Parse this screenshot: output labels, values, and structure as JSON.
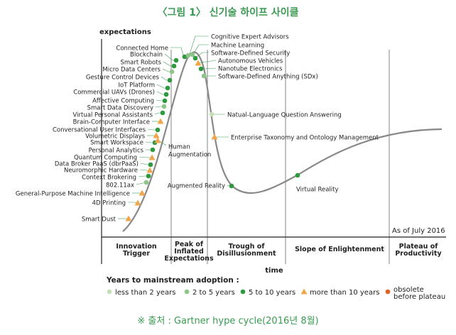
{
  "figure_title": "〈그림 1〉 신기술 하이프 사이클",
  "source_note": "※ 출처 : Gartner hype cycle(2016년 8월)",
  "chart_data": {
    "type": "line",
    "title": "",
    "ylabel": "expectations",
    "xlabel": "time",
    "as_of": "As of July 2016",
    "phases": [
      {
        "name": "innovation-trigger",
        "lines": [
          "Innovation",
          "Trigger"
        ]
      },
      {
        "name": "peak",
        "lines": [
          "Peak of",
          "Inflated",
          "Expectations"
        ]
      },
      {
        "name": "trough",
        "lines": [
          "Trough of",
          "Disillusionment"
        ]
      },
      {
        "name": "slope",
        "lines": [
          "Slope of Enlightenment"
        ]
      },
      {
        "name": "plateau",
        "lines": [
          "Plateau of",
          "Productivity"
        ]
      }
    ],
    "legend": {
      "title": "Years to mainstream adoption :",
      "items": [
        {
          "key": "lt2",
          "label": "less than 2 years",
          "color": "#c5dfb4",
          "shape": "circle"
        },
        {
          "key": "2to5",
          "label": "2 to 5 years",
          "color": "#8fc58a",
          "shape": "circle"
        },
        {
          "key": "5to10",
          "label": "5 to 10 years",
          "color": "#2e9a3f",
          "shape": "circle"
        },
        {
          "key": "gt10",
          "label": "more than 10 years",
          "color": "#f2a64c",
          "shape": "triangle"
        },
        {
          "key": "obsolete",
          "label": "obsolete before plateau",
          "color": "#e4601e",
          "shape": "circle"
        }
      ]
    },
    "technologies": [
      {
        "label": "Smart Dust",
        "category": "gt10"
      },
      {
        "label": "4D Printing",
        "category": "gt10"
      },
      {
        "label": "General-Purpose Machine Intelligence",
        "category": "gt10"
      },
      {
        "label": "802.11ax",
        "category": "2to5"
      },
      {
        "label": "Context Brokering",
        "category": "5to10"
      },
      {
        "label": "Neuromorphic Hardware",
        "category": "gt10"
      },
      {
        "label": "Data Broker PaaS (dbrPaaS)",
        "category": "5to10"
      },
      {
        "label": "Quantum Computing",
        "category": "gt10"
      },
      {
        "label": "Personal Analytics",
        "category": "5to10"
      },
      {
        "label": "Smart Workspace",
        "category": "5to10"
      },
      {
        "label": "Volumetric Displays",
        "category": "gt10"
      },
      {
        "label": "Conversational User Interfaces",
        "category": "5to10"
      },
      {
        "label": "Brain-Computer Interface",
        "category": "gt10"
      },
      {
        "label": "Virtual Personal Assistants",
        "category": "5to10"
      },
      {
        "label": "Smart Data Discovery",
        "category": "2to5"
      },
      {
        "label": "Affective Computing",
        "category": "5to10"
      },
      {
        "label": "Commercial UAVs (Drones)",
        "category": "5to10"
      },
      {
        "label": "IoT Platform",
        "category": "5to10"
      },
      {
        "label": "Gesture Control Devices",
        "category": "5to10"
      },
      {
        "label": "Micro Data Centers",
        "category": "2to5"
      },
      {
        "label": "Smart Robots",
        "category": "5to10"
      },
      {
        "label": "Blockchain",
        "category": "5to10"
      },
      {
        "label": "Connected Home",
        "category": "5to10"
      },
      {
        "label": "Cognitive Expert Advisors",
        "category": "2to5"
      },
      {
        "label": "Machine Learning",
        "category": "2to5"
      },
      {
        "label": "Software-Defined Security",
        "category": "5to10"
      },
      {
        "label": "Autonomous Vehicles",
        "category": "gt10"
      },
      {
        "label": "Nanotube Electronics",
        "category": "5to10"
      },
      {
        "label": "Software-Defined Anything (SDx)",
        "category": "2to5"
      },
      {
        "label": "Human Augmentation",
        "category": "gt10"
      },
      {
        "label": "Natual-Language Question Answering",
        "category": "lt2"
      },
      {
        "label": "Enterprise Taxonomy and Ontology Management",
        "category": "gt10"
      },
      {
        "label": "Augmented Reality",
        "category": "5to10"
      },
      {
        "label": "Virtual Reality",
        "category": "5to10"
      }
    ]
  }
}
